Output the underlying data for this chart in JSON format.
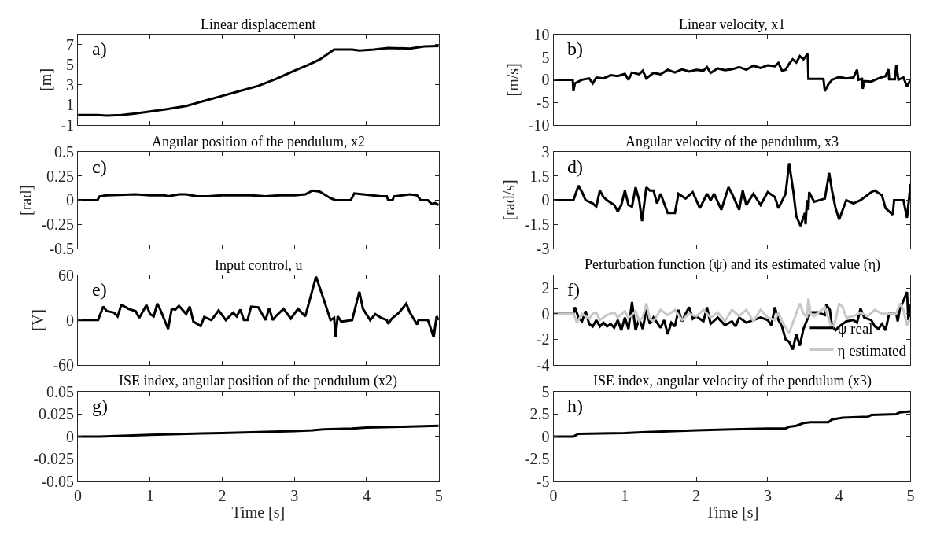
{
  "chart_data": [
    {
      "type": "line",
      "title": "Linear displacement",
      "ylabel": "[m]",
      "annotations": [
        "a)"
      ],
      "xlim": [
        0,
        5
      ],
      "xticks": [
        0,
        1,
        2,
        3,
        4,
        5
      ],
      "ylim": [
        -1,
        8
      ],
      "yticks": [
        -1,
        1,
        3,
        5,
        7
      ],
      "tick_labels": "y",
      "series": [
        {
          "color": "#000000",
          "x": [
            0,
            0.27,
            0.4,
            0.6,
            0.8,
            1.0,
            1.25,
            1.5,
            1.75,
            2.0,
            2.25,
            2.5,
            2.75,
            3.0,
            3.2,
            3.35,
            3.55,
            3.8,
            3.9,
            4.1,
            4.3,
            4.6,
            4.8,
            5.0
          ],
          "values": [
            0,
            0,
            -0.05,
            0.0,
            0.15,
            0.35,
            0.6,
            0.9,
            1.4,
            1.9,
            2.4,
            2.9,
            3.6,
            4.4,
            5.0,
            5.5,
            6.5,
            6.5,
            6.4,
            6.5,
            6.65,
            6.6,
            6.8,
            6.85
          ]
        }
      ]
    },
    {
      "type": "line",
      "title": "Linear velocity, x1",
      "ylabel": "[m/s]",
      "annotations": [
        "b)"
      ],
      "xlim": [
        0,
        5
      ],
      "xticks": [
        0,
        1,
        2,
        3,
        4,
        5
      ],
      "ylim": [
        -10,
        10
      ],
      "yticks": [
        -10,
        -5,
        0,
        5,
        10
      ],
      "tick_labels": "y",
      "series": [
        {
          "color": "#000000",
          "x": [
            0,
            0.27,
            0.28,
            0.3,
            0.4,
            0.5,
            0.55,
            0.6,
            0.7,
            0.8,
            0.9,
            1.0,
            1.05,
            1.1,
            1.2,
            1.25,
            1.3,
            1.4,
            1.5,
            1.6,
            1.7,
            1.8,
            1.9,
            2.0,
            2.1,
            2.15,
            2.2,
            2.3,
            2.4,
            2.5,
            2.6,
            2.7,
            2.8,
            2.9,
            3.0,
            3.1,
            3.15,
            3.2,
            3.25,
            3.3,
            3.35,
            3.4,
            3.45,
            3.5,
            3.56,
            3.57,
            3.78,
            3.8,
            3.85,
            3.9,
            4.0,
            4.1,
            4.2,
            4.25,
            4.27,
            4.32,
            4.33,
            4.35,
            4.45,
            4.55,
            4.65,
            4.69,
            4.7,
            4.78,
            4.8,
            4.83,
            4.9,
            4.95,
            5.0
          ],
          "values": [
            0,
            0,
            -2.5,
            -0.8,
            0,
            0.3,
            -0.8,
            0.5,
            0.3,
            1,
            0.8,
            1.3,
            0,
            1.6,
            1.2,
            2,
            0.3,
            1.5,
            1.2,
            2.2,
            1.6,
            2.3,
            1.8,
            2.2,
            2,
            2.8,
            1.5,
            2.5,
            2.1,
            2.3,
            2.8,
            2.2,
            3.1,
            2.6,
            3.2,
            3,
            3.7,
            2,
            2.2,
            3.5,
            4.5,
            3.8,
            5.2,
            4.5,
            5.7,
            0.2,
            0.2,
            -2.5,
            -1,
            0,
            0.6,
            0.3,
            0.5,
            2.2,
            0,
            0.2,
            -2,
            -0.3,
            -0.4,
            0.3,
            0.8,
            2.3,
            0.1,
            0.1,
            3.2,
            0,
            0.5,
            -1.5,
            0
          ]
        }
      ]
    },
    {
      "type": "line",
      "title": "Angular position of the pendulum, x2",
      "ylabel": "[rad]",
      "annotations": [
        "c)"
      ],
      "xlim": [
        0,
        5
      ],
      "xticks": [
        0,
        1,
        2,
        3,
        4,
        5
      ],
      "ylim": [
        -0.5,
        0.5
      ],
      "yticks": [
        -0.5,
        -0.25,
        0,
        0.25,
        0.5
      ],
      "tick_labels": "y",
      "series": [
        {
          "color": "#000000",
          "x": [
            0,
            0.27,
            0.3,
            0.4,
            0.8,
            1,
            1.2,
            1.25,
            1.4,
            1.5,
            1.65,
            1.8,
            2,
            2.4,
            2.6,
            2.8,
            3,
            3.15,
            3.25,
            3.35,
            3.5,
            3.57,
            3.78,
            3.83,
            3.95,
            4.2,
            4.28,
            4.3,
            4.36,
            4.38,
            4.6,
            4.7,
            4.75,
            4.85,
            4.9,
            4.95,
            5
          ],
          "values": [
            0,
            0,
            0.04,
            0.05,
            0.06,
            0.05,
            0.05,
            0.04,
            0.06,
            0.06,
            0.04,
            0.04,
            0.05,
            0.05,
            0.04,
            0.05,
            0.05,
            0.06,
            0.1,
            0.09,
            0.02,
            0,
            0,
            0.07,
            0.06,
            0.04,
            0.04,
            0,
            0,
            0.04,
            0.06,
            0.05,
            0,
            0,
            -0.04,
            -0.03,
            -0.05
          ]
        }
      ]
    },
    {
      "type": "line",
      "title": "Angular velocity of the pendulum, x3",
      "ylabel": "[rad/s]",
      "annotations": [
        "d)"
      ],
      "xlim": [
        0,
        5
      ],
      "xticks": [
        0,
        1,
        2,
        3,
        4,
        5
      ],
      "ylim": [
        -3,
        3
      ],
      "yticks": [
        -3,
        -1.5,
        0,
        1.5,
        3
      ],
      "tick_labels": "y",
      "series": [
        {
          "color": "#000000",
          "x": [
            0,
            0.28,
            0.35,
            0.4,
            0.45,
            0.55,
            0.6,
            0.65,
            0.7,
            0.75,
            0.85,
            0.9,
            0.95,
            1.0,
            1.05,
            1.1,
            1.15,
            1.2,
            1.24,
            1.3,
            1.35,
            1.4,
            1.45,
            1.5,
            1.6,
            1.7,
            1.75,
            1.85,
            1.95,
            2.05,
            2.15,
            2.2,
            2.25,
            2.35,
            2.45,
            2.5,
            2.6,
            2.65,
            2.7,
            2.8,
            2.9,
            3.0,
            3.1,
            3.15,
            3.25,
            3.3,
            3.36,
            3.4,
            3.46,
            3.52,
            3.53,
            3.55,
            3.57,
            3.58,
            3.65,
            3.8,
            3.86,
            3.9,
            3.95,
            4.0,
            4.05,
            4.1,
            4.2,
            4.3,
            4.45,
            4.5,
            4.6,
            4.65,
            4.75,
            4.77,
            4.9,
            4.95,
            5
          ],
          "values": [
            0,
            0,
            0.9,
            0.5,
            0,
            -0.2,
            -0.4,
            0.6,
            0.2,
            0,
            -0.3,
            -0.7,
            -0.3,
            0.6,
            -0.3,
            -0.4,
            0.8,
            0,
            -1.3,
            0.8,
            0.6,
            0.6,
            -0.2,
            0.4,
            -0.8,
            -0.8,
            0.4,
            0.1,
            0.5,
            -0.5,
            0.4,
            0,
            0.4,
            -0.6,
            0.8,
            0.4,
            -0.6,
            0.6,
            -0.3,
            0.4,
            -0.3,
            0.5,
            0.2,
            -0.5,
            0.4,
            2.3,
            0.5,
            -1,
            -1.6,
            -0.8,
            -1.5,
            0,
            -0.6,
            0.5,
            -0.1,
            0.1,
            1.7,
            0.6,
            -0.5,
            -1.2,
            -0.6,
            0,
            -0.2,
            0,
            0.5,
            0.6,
            0.3,
            -0.5,
            -0.9,
            0,
            0,
            -1.1,
            1
          ]
        }
      ]
    },
    {
      "type": "line",
      "title": "Input control, u",
      "ylabel": "[V]",
      "annotations": [
        "e)"
      ],
      "xlim": [
        0,
        5
      ],
      "xticks": [
        0,
        1,
        2,
        3,
        4,
        5
      ],
      "ylim": [
        -60,
        60
      ],
      "yticks": [
        -60,
        0,
        60
      ],
      "tick_labels": "y",
      "series": [
        {
          "color": "#000000",
          "x": [
            0,
            0.28,
            0.35,
            0.4,
            0.5,
            0.55,
            0.6,
            0.65,
            0.7,
            0.8,
            0.85,
            0.95,
            1.0,
            1.05,
            1.1,
            1.15,
            1.2,
            1.25,
            1.3,
            1.35,
            1.4,
            1.5,
            1.55,
            1.6,
            1.65,
            1.7,
            1.75,
            1.8,
            1.85,
            1.95,
            2.05,
            2.15,
            2.2,
            2.25,
            2.3,
            2.35,
            2.4,
            2.5,
            2.6,
            2.65,
            2.7,
            2.75,
            2.85,
            2.95,
            3.05,
            3.15,
            3.3,
            3.45,
            3.5,
            3.55,
            3.57,
            3.6,
            3.65,
            3.8,
            3.9,
            3.95,
            4.05,
            4.12,
            4.2,
            4.28,
            4.3,
            4.35,
            4.45,
            4.55,
            4.6,
            4.7,
            4.72,
            4.85,
            4.93,
            4.97,
            5
          ],
          "values": [
            0,
            0,
            18,
            12,
            10,
            5,
            20,
            18,
            15,
            12,
            3,
            20,
            8,
            5,
            22,
            12,
            0,
            -12,
            15,
            14,
            19,
            8,
            18,
            -2,
            -5,
            -8,
            4,
            2,
            0,
            13,
            0,
            10,
            5,
            14,
            0,
            0,
            18,
            17,
            0,
            16,
            0,
            6,
            15,
            2,
            15,
            5,
            58,
            15,
            0,
            3,
            -22,
            5,
            -2,
            0,
            38,
            15,
            0,
            8,
            3,
            0,
            -5,
            2,
            10,
            22,
            10,
            -6,
            0,
            0,
            -23,
            5,
            0
          ]
        }
      ]
    },
    {
      "type": "line",
      "title": "Perturbation function (ψ) and its estimated value (η)",
      "annotations": [
        "f)"
      ],
      "xlim": [
        0,
        5
      ],
      "xticks": [
        0,
        1,
        2,
        3,
        4,
        5
      ],
      "ylim": [
        -4,
        3
      ],
      "yticks": [
        -4,
        -2,
        0,
        2
      ],
      "tick_labels": "y",
      "legend": "bottom right",
      "series": [
        {
          "name": "ψ real",
          "color": "#000000",
          "x": [
            0,
            0.28,
            0.3,
            0.35,
            0.4,
            0.45,
            0.5,
            0.55,
            0.6,
            0.65,
            0.7,
            0.75,
            0.8,
            0.85,
            0.9,
            0.95,
            1.0,
            1.05,
            1.1,
            1.15,
            1.2,
            1.25,
            1.3,
            1.35,
            1.4,
            1.5,
            1.55,
            1.6,
            1.65,
            1.7,
            1.75,
            1.8,
            1.85,
            1.9,
            1.95,
            2.0,
            2.1,
            2.15,
            2.2,
            2.3,
            2.4,
            2.5,
            2.55,
            2.6,
            2.7,
            2.8,
            2.9,
            3.0,
            3.05,
            3.1,
            3.15,
            3.2,
            3.25,
            3.3,
            3.35,
            3.4,
            3.45,
            3.5,
            3.55,
            3.6,
            3.7,
            3.8,
            3.82,
            3.87,
            3.9,
            3.95,
            4.0,
            4.1,
            4.2,
            4.25,
            4.3,
            4.35,
            4.45,
            4.5,
            4.55,
            4.6,
            4.65,
            4.7,
            4.8,
            4.82,
            4.85,
            4.9,
            4.95,
            4.97,
            5
          ],
          "values": [
            0,
            0,
            0.5,
            -0.3,
            -0.6,
            0.2,
            -0.8,
            -1,
            -0.5,
            -1,
            -0.7,
            -1,
            -0.8,
            -1.1,
            -0.5,
            -1.3,
            -0.3,
            -1.2,
            0.9,
            -1.3,
            -0.4,
            -1.2,
            0.3,
            -0.8,
            -0.3,
            -1.1,
            -0.5,
            -1.6,
            -0.7,
            -1,
            0.3,
            -0.6,
            0,
            0.5,
            -0.4,
            -0.2,
            -0.6,
            0.5,
            -0.8,
            -0.3,
            -0.9,
            -0.6,
            -1,
            -0.3,
            -0.7,
            -0.5,
            -0.3,
            -0.5,
            -0.9,
            0.5,
            -0.5,
            -1,
            -2,
            -2.2,
            -2.8,
            -1.6,
            -2.5,
            -1.2,
            -0.5,
            0.1,
            0.1,
            -0.1,
            0.7,
            0.3,
            -1,
            -1.3,
            -1,
            -0.6,
            -0.5,
            -0.7,
            0.4,
            -0.3,
            -0.5,
            -1,
            -1.2,
            -0.8,
            -1.3,
            0,
            0,
            -0.6,
            0.4,
            1,
            1.7,
            -0.5,
            0.7
          ]
        },
        {
          "name": "η estimated",
          "color": "#c8c8c8",
          "x": [
            0,
            0.28,
            0.33,
            0.4,
            0.5,
            0.55,
            0.6,
            0.65,
            0.75,
            0.8,
            0.85,
            0.9,
            1.0,
            1.05,
            1.1,
            1.15,
            1.2,
            1.25,
            1.3,
            1.35,
            1.4,
            1.5,
            1.6,
            1.7,
            1.8,
            1.9,
            2.0,
            2.1,
            2.2,
            2.3,
            2.4,
            2.5,
            2.6,
            2.7,
            2.8,
            2.9,
            3.0,
            3.1,
            3.15,
            3.2,
            3.3,
            3.4,
            3.45,
            3.5,
            3.55,
            3.57,
            3.6,
            3.65,
            3.8,
            3.9,
            3.95,
            4.0,
            4.05,
            4.1,
            4.2,
            4.3,
            4.4,
            4.5,
            4.6,
            4.7,
            4.8,
            4.85,
            4.9,
            4.95,
            5
          ],
          "values": [
            0,
            0,
            -0.7,
            0,
            -0.4,
            0,
            0.1,
            -0.5,
            -0.1,
            0,
            0.1,
            -0.3,
            0.2,
            -0.3,
            -0.1,
            0.2,
            -0.6,
            -0.3,
            0.8,
            -0.4,
            -0.6,
            0.3,
            -0.1,
            0.3,
            -0.5,
            0,
            -0.2,
            0.3,
            -0.3,
            0.1,
            -0.6,
            0.3,
            -0.2,
            0.3,
            -0.6,
            0.3,
            -0.3,
            -0.5,
            0.1,
            -0.6,
            -1.5,
            0,
            0.8,
            0,
            -0.3,
            1.2,
            0,
            -0.2,
            0.5,
            -1.2,
            -0.5,
            0.8,
            0.5,
            -0.3,
            -0.2,
            0.1,
            -0.2,
            0.3,
            0,
            0,
            0,
            0.8,
            0.3,
            -0.9,
            -0.3
          ]
        }
      ]
    },
    {
      "type": "line",
      "title": "ISE index, angular position of the pendulum (x2)",
      "xlabel": "Time [s]",
      "annotations": [
        "g)"
      ],
      "xlim": [
        0,
        5
      ],
      "xticks": [
        0,
        1,
        2,
        3,
        4,
        5
      ],
      "ylim": [
        -0.05,
        0.05
      ],
      "yticks": [
        -0.05,
        -0.025,
        0,
        0.025,
        0.05
      ],
      "series": [
        {
          "color": "#000000",
          "x": [
            0,
            0.3,
            1,
            1.5,
            2,
            2.5,
            3,
            3.25,
            3.4,
            3.8,
            4,
            4.5,
            5
          ],
          "values": [
            0,
            0,
            0.002,
            0.003,
            0.004,
            0.005,
            0.006,
            0.007,
            0.008,
            0.009,
            0.01,
            0.011,
            0.012
          ]
        }
      ]
    },
    {
      "type": "line",
      "title": "ISE index, angular velocity of the pendulum (x3)",
      "xlabel": "Time [s]",
      "annotations": [
        "h)"
      ],
      "xlim": [
        0,
        5
      ],
      "xticks": [
        0,
        1,
        2,
        3,
        4,
        5
      ],
      "ylim": [
        -5,
        5
      ],
      "yticks": [
        -5,
        -2.5,
        0,
        2.5,
        5
      ],
      "series": [
        {
          "color": "#000000",
          "x": [
            0,
            0.28,
            0.35,
            1,
            1.3,
            2,
            2.5,
            3,
            3.25,
            3.3,
            3.4,
            3.5,
            3.6,
            3.85,
            3.9,
            4.05,
            4.4,
            4.45,
            4.8,
            4.85,
            5
          ],
          "values": [
            0,
            0,
            0.3,
            0.4,
            0.5,
            0.7,
            0.8,
            0.9,
            0.9,
            1.1,
            1.2,
            1.5,
            1.6,
            1.6,
            1.9,
            2.1,
            2.2,
            2.4,
            2.5,
            2.7,
            2.8
          ]
        }
      ]
    }
  ]
}
